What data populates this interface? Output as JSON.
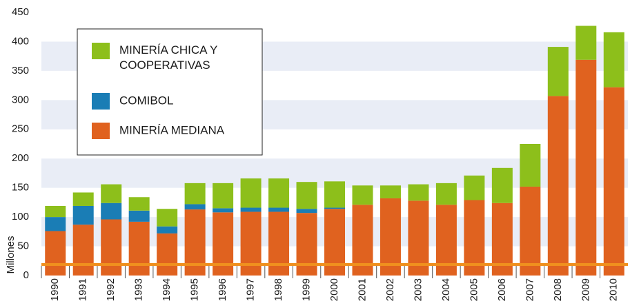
{
  "chart_data": {
    "type": "stacked_bar",
    "y_label": "Millones",
    "categories": [
      "1990",
      "1991",
      "1992",
      "1993",
      "1994",
      "1995",
      "1996",
      "1997",
      "1998",
      "1999",
      "2000",
      "2001",
      "2002",
      "2003",
      "2004",
      "2005",
      "2006",
      "2007",
      "2008",
      "2009",
      "2010"
    ],
    "series": [
      {
        "name": "MINERÍA MEDIANA",
        "color": "#e0621f",
        "values": [
          76,
          87,
          96,
          92,
          72,
          113,
          108,
          109,
          109,
          107,
          114,
          121,
          132,
          128,
          121,
          129,
          124,
          152,
          307,
          369,
          322
        ]
      },
      {
        "name": "COMIBOL",
        "color": "#1a7db5",
        "values": [
          24,
          32,
          28,
          19,
          12,
          9,
          7,
          7,
          7,
          7,
          2,
          0,
          0,
          0,
          0,
          0,
          0,
          0,
          0,
          0,
          0
        ]
      },
      {
        "name": "MINERÍA CHICA Y COOPERATIVAS",
        "color": "#8dbf1b",
        "values": [
          19,
          23,
          32,
          23,
          30,
          36,
          43,
          50,
          50,
          46,
          45,
          33,
          22,
          28,
          37,
          42,
          60,
          73,
          84,
          58,
          94
        ]
      }
    ],
    "legend_order": [
      2,
      1,
      0
    ],
    "ylim": [
      0,
      450
    ],
    "yticks": [
      0,
      50,
      100,
      150,
      200,
      250,
      300,
      350,
      400,
      450
    ],
    "grid": true
  }
}
